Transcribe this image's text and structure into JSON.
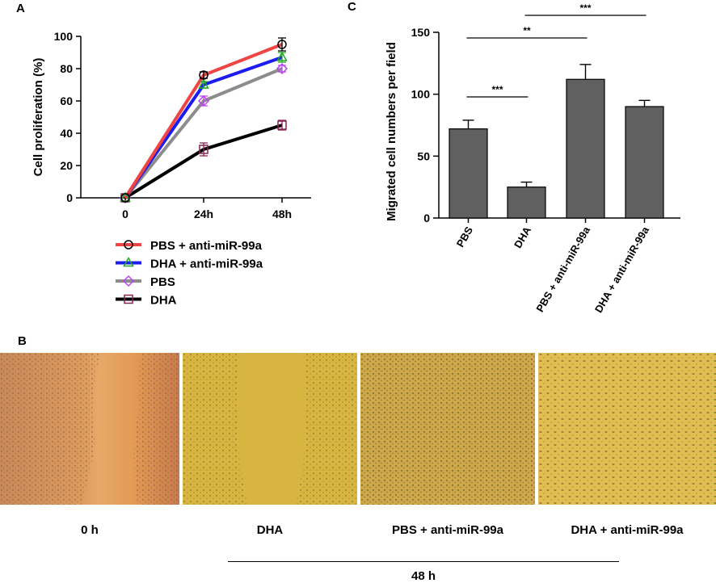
{
  "panels": {
    "a": "A",
    "b": "B",
    "c": "C"
  },
  "chart_data": [
    {
      "type": "line",
      "ylabel": "Cell proliferation (%)",
      "xlabel": "",
      "categories": [
        "0",
        "24h",
        "48h"
      ],
      "ylim": [
        0,
        100
      ],
      "yticks": [
        "0",
        "20",
        "40",
        "60",
        "80",
        "100"
      ],
      "legend_position": "bottom",
      "series": [
        {
          "name": "PBS + anti-miR-99a",
          "values": [
            0,
            76,
            95
          ],
          "errors": [
            0,
            2,
            4
          ],
          "color": "#ef4444",
          "marker": "circle",
          "marker_color": "#000000"
        },
        {
          "name": "DHA + anti-miR-99a",
          "values": [
            0,
            70,
            87
          ],
          "errors": [
            0,
            2,
            3
          ],
          "color": "#1c1cf0",
          "marker": "triangle",
          "marker_color": "#22aa22"
        },
        {
          "name": "PBS",
          "values": [
            0,
            60,
            80
          ],
          "errors": [
            0,
            3,
            2
          ],
          "color": "#8c8c8c",
          "marker": "diamond",
          "marker_color": "#bb44ee"
        },
        {
          "name": "DHA",
          "values": [
            0,
            30,
            45
          ],
          "errors": [
            0,
            4,
            3
          ],
          "color": "#000000",
          "marker": "square",
          "marker_color": "#8b2252"
        }
      ]
    },
    {
      "type": "bar",
      "ylabel": "Migrated cell numbers per field",
      "xlabel": "",
      "categories": [
        "PBS",
        "DHA",
        "PBS + anti-miR-99a",
        "DHA + anti-miR-99a"
      ],
      "values": [
        72,
        25,
        112,
        90
      ],
      "errors": [
        7,
        4,
        12,
        5
      ],
      "ylim": [
        0,
        150
      ],
      "yticks": [
        "0",
        "50",
        "100",
        "150"
      ],
      "bar_color": "#606060",
      "significance": [
        {
          "from": 0,
          "to": 1,
          "label": "***"
        },
        {
          "from": 0,
          "to": 2,
          "label": "**"
        },
        {
          "from": 1,
          "to": 3,
          "label": "***"
        }
      ]
    }
  ],
  "micrographs": {
    "captions": [
      "0 h",
      "DHA",
      "PBS + anti-miR-99a",
      "DHA + anti-miR-99a"
    ],
    "bracket_label": "48 h"
  }
}
